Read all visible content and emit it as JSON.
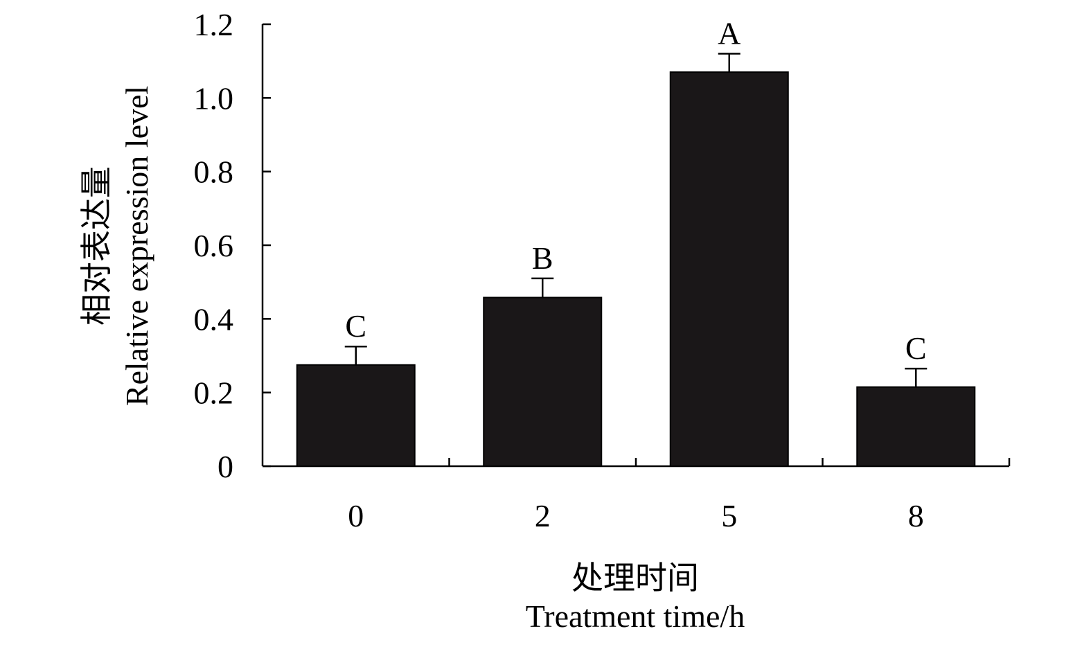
{
  "chart_data": {
    "type": "bar",
    "categories": [
      "0",
      "2",
      "5",
      "8"
    ],
    "values": [
      0.275,
      0.458,
      1.07,
      0.215
    ],
    "error": [
      0.05,
      0.052,
      0.05,
      0.05
    ],
    "group_labels": [
      "C",
      "B",
      "A",
      "C"
    ],
    "xlabel_cn": "处理时间",
    "xlabel_en": "Treatment time/h",
    "ylabel_cn": "相对表达量",
    "ylabel_en": "Relative expression level",
    "ylim": [
      0,
      1.2
    ],
    "yticks": [
      0,
      0.2,
      0.4,
      0.6,
      0.8,
      1.0,
      1.2
    ],
    "ytick_labels": [
      "0",
      "0.2",
      "0.4",
      "0.6",
      "0.8",
      "1.0",
      "1.2"
    ],
    "grid": false,
    "bar_color": "#1a1718"
  }
}
